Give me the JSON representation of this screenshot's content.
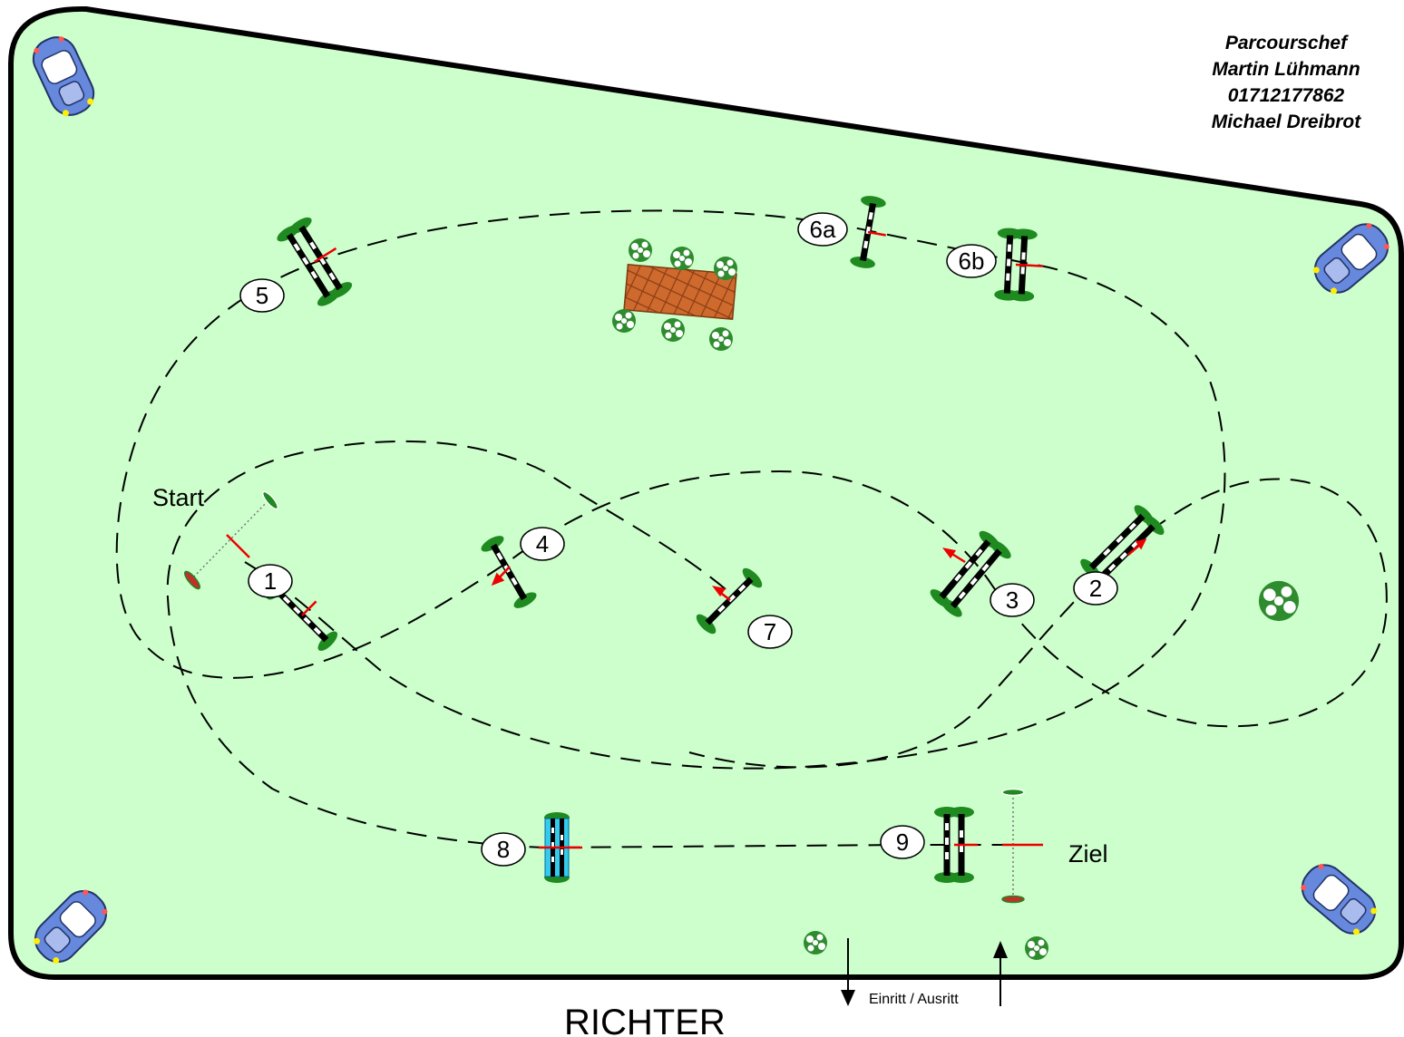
{
  "credits": [
    "Parcourschef",
    "Martin Lühmann",
    "01712177862",
    "Michael Dreibrot"
  ],
  "labels": {
    "start": "Start",
    "finish": "Ziel",
    "judge": "RICHTER",
    "entrance": "Einritt / Ausritt"
  },
  "obstacles": [
    "1",
    "2",
    "3",
    "4",
    "5",
    "6a",
    "6b",
    "7",
    "8",
    "9"
  ],
  "colors": {
    "arena_fill": "#ccffcc",
    "arena_border": "#000000",
    "water": "#33ccee",
    "plant": "#228b22",
    "arrow": "#ff0000",
    "car": "#5577dd",
    "wood": "#c8652a"
  }
}
